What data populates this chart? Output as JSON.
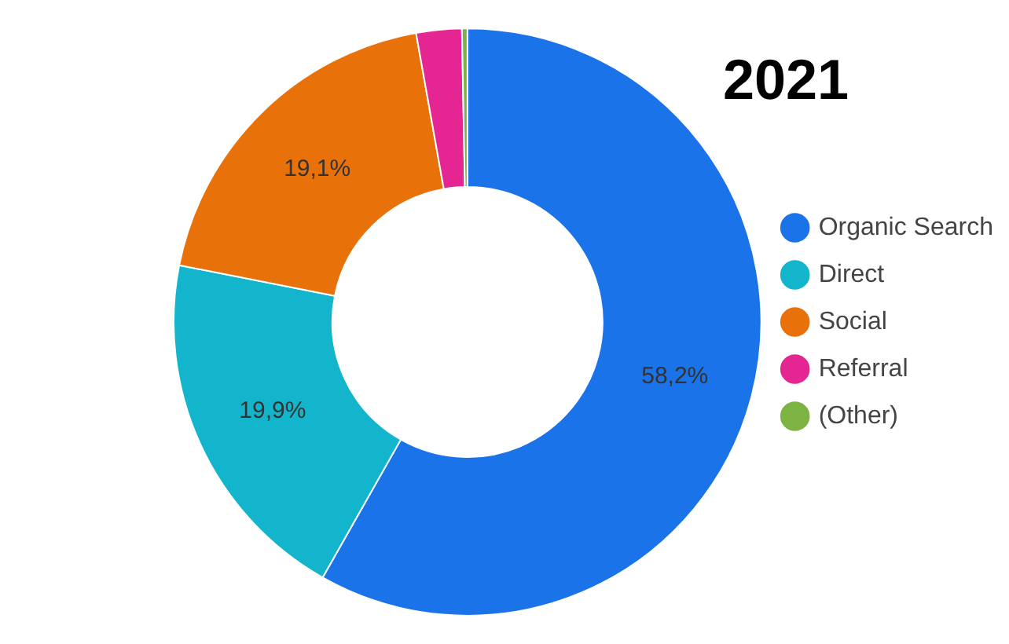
{
  "chart_data": {
    "type": "donut",
    "title": "2021",
    "categories": [
      "Organic Search",
      "Direct",
      "Social",
      "Referral",
      "(Other)"
    ],
    "values": [
      58.2,
      19.9,
      19.1,
      2.5,
      0.3
    ],
    "colors": [
      "#1a73e8",
      "#12b5cb",
      "#e8710a",
      "#e52592",
      "#7cb342"
    ],
    "value_labels": [
      "58,2%",
      "19,9%",
      "19,1%",
      null,
      null
    ],
    "legend": "right"
  }
}
